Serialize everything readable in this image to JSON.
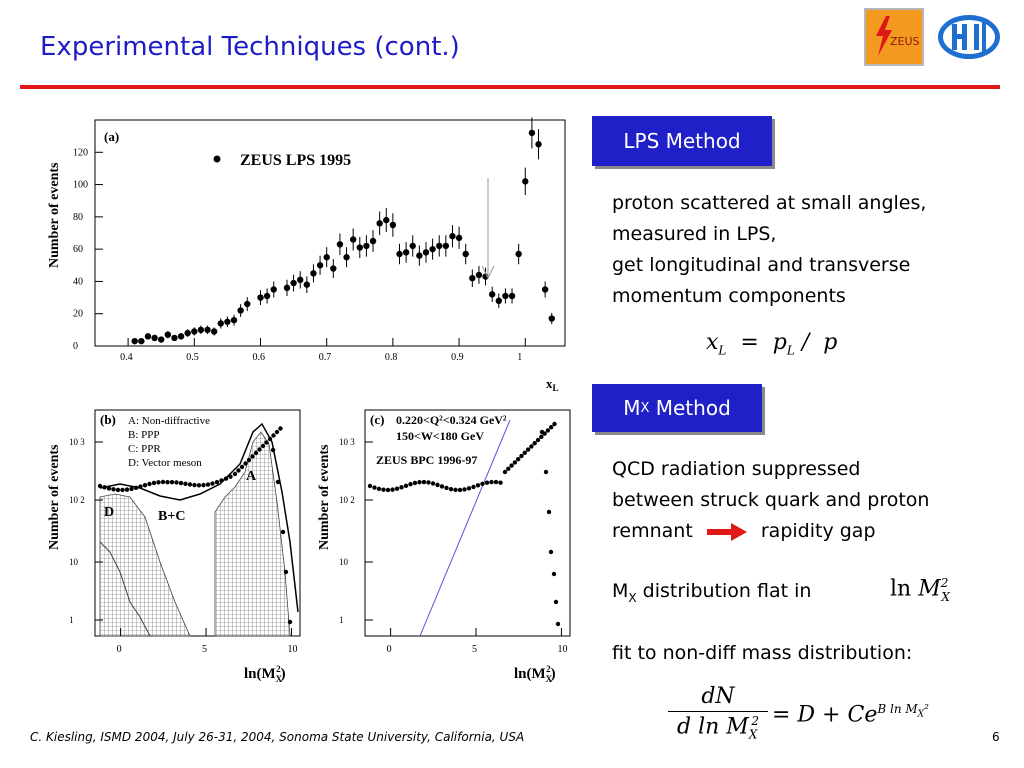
{
  "slide": {
    "title": "Experimental Techniques (cont.)",
    "footer": "C. Kiesling, ISMD 2004, July 26-31, 2004, Sonoma State University, California, USA",
    "page_number": "6",
    "logos": {
      "zeus_text": "ZEUS"
    },
    "colors": {
      "title": "#1c1cc8",
      "rule": "#e01818",
      "box": "#2020c8",
      "arrow": "#e01818"
    }
  },
  "lps": {
    "box_label": "LPS Method",
    "lines": [
      "proton scattered at small angles,",
      "measured in LPS,",
      "get longitudinal and transverse",
      "momentum components"
    ],
    "formula": "x_L = p_L / p"
  },
  "mx": {
    "box_label_main": "M",
    "box_label_sub": "X",
    "box_label_rest": " Method",
    "text_lines": [
      "QCD radiation suppressed",
      "between struck quark and proton"
    ],
    "remnant": "remnant",
    "rapidity": "rapidity gap",
    "flat_prefix": "M",
    "flat_sub": "X",
    "flat_rest": " distribution flat in",
    "fit_text": "fit to non-diff mass distribution:",
    "formula_num": "dN",
    "formula_den": "d ln M",
    "formula_rhs": "= D + Ce"
  },
  "chart_data": [
    {
      "type": "scatter",
      "panel": "(a)",
      "legend": "ZEUS LPS 1995",
      "ylabel": "Number of events",
      "xlabel": "x_L",
      "xlim": [
        0.35,
        1.06
      ],
      "ylim": [
        0,
        140
      ],
      "xticks": [
        0.4,
        0.5,
        0.6,
        0.7,
        0.8,
        0.9,
        1
      ],
      "yticks": [
        0,
        20,
        40,
        60,
        80,
        100,
        120
      ],
      "x": [
        0.41,
        0.42,
        0.43,
        0.44,
        0.45,
        0.46,
        0.47,
        0.48,
        0.49,
        0.5,
        0.51,
        0.52,
        0.53,
        0.54,
        0.55,
        0.56,
        0.57,
        0.58,
        0.6,
        0.61,
        0.62,
        0.64,
        0.65,
        0.66,
        0.67,
        0.68,
        0.69,
        0.7,
        0.71,
        0.72,
        0.73,
        0.74,
        0.75,
        0.76,
        0.77,
        0.78,
        0.79,
        0.8,
        0.81,
        0.82,
        0.83,
        0.84,
        0.85,
        0.86,
        0.87,
        0.88,
        0.89,
        0.9,
        0.91,
        0.92,
        0.93,
        0.94,
        0.95,
        0.96,
        0.97,
        0.98,
        0.99,
        1.0,
        1.01,
        1.02,
        1.03,
        1.04
      ],
      "y": [
        3,
        3,
        6,
        5,
        4,
        7,
        5,
        6,
        8,
        9,
        10,
        10,
        9,
        14,
        15,
        16,
        22,
        26,
        30,
        31,
        35,
        36,
        39,
        41,
        38,
        45,
        50,
        55,
        48,
        63,
        55,
        66,
        61,
        62,
        65,
        76,
        78,
        75,
        57,
        58,
        62,
        56,
        58,
        60,
        62,
        62,
        68,
        67,
        57,
        42,
        44,
        43,
        32,
        28,
        31,
        31,
        57,
        102,
        132,
        125,
        35,
        17
      ]
    },
    {
      "type": "histogram",
      "panel": "(b)",
      "legend": [
        "A: Non-diffractive",
        "B: PPP",
        "C: PPR",
        "D: Vector meson"
      ],
      "curve_labels": [
        "A",
        "D",
        "B+C"
      ],
      "ylabel": "Number of events",
      "xlabel": "ln(M_X^2)",
      "xlim": [
        -1.5,
        10.5
      ],
      "yscale": "log",
      "yticks": [
        "1",
        "10",
        "10 2",
        "10 3"
      ],
      "xticks": [
        0,
        5,
        10
      ]
    },
    {
      "type": "scatter",
      "panel": "(c)",
      "annotations": [
        "0.220<Q²<0.324 GeV²",
        "150<W<180 GeV",
        "ZEUS BPC 1996-97"
      ],
      "ylabel": "Number of events",
      "xlabel": "ln(M_X^2)",
      "xlim": [
        -1.5,
        10.5
      ],
      "yscale": "log",
      "yticks": [
        "1",
        "10",
        "10 2",
        "10 3"
      ],
      "xticks": [
        0,
        5,
        10
      ]
    }
  ]
}
